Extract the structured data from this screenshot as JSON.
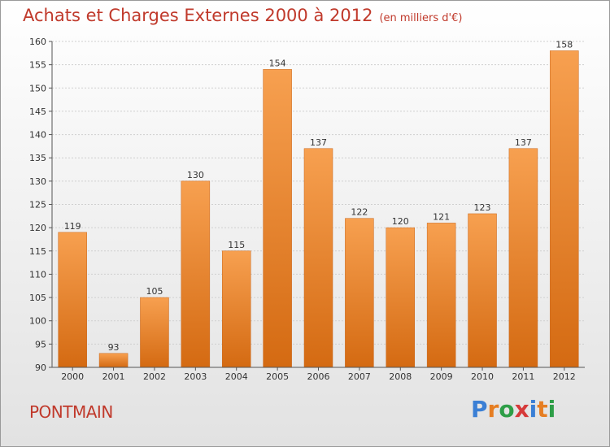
{
  "header": {
    "title": "Achats et Charges Externes 2000 à 2012",
    "unit": "(en milliers d'€)"
  },
  "footer": {
    "commune": "PONTMAIN",
    "brand_letters": [
      "P",
      "r",
      "o",
      "x",
      "i",
      "t",
      "i"
    ],
    "brand_colors": [
      "#3a7fd5",
      "#e67e22",
      "#2e9e47",
      "#d63a3a",
      "#3a7fd5",
      "#e67e22",
      "#2e9e47"
    ]
  },
  "colors": {
    "bar_top": "#f7a050",
    "bar_bottom": "#d46a12",
    "axis": "#555555",
    "grid": "#cfcfcf"
  },
  "chart_data": {
    "type": "bar",
    "categories": [
      "2000",
      "2001",
      "2002",
      "2003",
      "2004",
      "2005",
      "2006",
      "2007",
      "2008",
      "2009",
      "2010",
      "2011",
      "2012"
    ],
    "values": [
      119,
      93,
      105,
      130,
      115,
      154,
      137,
      122,
      120,
      121,
      123,
      137,
      158
    ],
    "ylim": [
      90,
      160
    ],
    "yticks": [
      90,
      95,
      100,
      105,
      110,
      115,
      120,
      125,
      130,
      135,
      140,
      145,
      150,
      155,
      160
    ],
    "grid": true
  }
}
